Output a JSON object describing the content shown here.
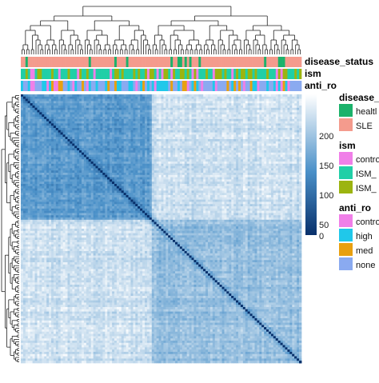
{
  "chart_data": {
    "type": "heatmap",
    "title": "",
    "matrix_size": 120,
    "cluster_split": 56,
    "scale_range": [
      0,
      220
    ],
    "colorbar_ticks": [
      200,
      150,
      100,
      50,
      0
    ],
    "colorbar_colors": {
      "low": "#08306b",
      "mid": "#4a90c8",
      "high": "#ffffff"
    },
    "diagonal_value": 0,
    "block_means": {
      "upper_left": 110,
      "lower_right": 150,
      "off_diagonal": 185
    },
    "annotation_tracks": [
      {
        "name": "disease_status",
        "categories": [
          {
            "label": "healthy",
            "color": "#1bb26b"
          },
          {
            "label": "SLE",
            "color": "#f49b8d"
          }
        ]
      },
      {
        "name": "ism",
        "categories": [
          {
            "label": "control",
            "color": "#f07fe8"
          },
          {
            "label": "ISM_high",
            "color": "#21cfa7"
          },
          {
            "label": "ISM_low",
            "color": "#9cb410"
          }
        ]
      },
      {
        "name": "anti_ro",
        "categories": [
          {
            "label": "control",
            "color": "#f07fe8"
          },
          {
            "label": "high",
            "color": "#20c8ea"
          },
          {
            "label": "med",
            "color": "#e8a010"
          },
          {
            "label": "none",
            "color": "#8aaaf0"
          }
        ]
      }
    ],
    "legend": [
      {
        "title": "disease_",
        "items": [
          "healthy",
          "SLE"
        ]
      },
      {
        "title": "ism",
        "items": [
          "control",
          "ISM_",
          "ISM_"
        ]
      },
      {
        "title": "anti_ro",
        "items": [
          "contro",
          "high",
          "med",
          "none"
        ]
      }
    ]
  },
  "colors": {
    "healthy": "#1bb26b",
    "sle": "#f49b8d",
    "control": "#f07fe8",
    "ism_high": "#21cfa7",
    "ism_low": "#9cb410",
    "high": "#20c8ea",
    "med": "#e8a010",
    "none": "#8aaaf0"
  },
  "labels": {
    "track_disease": "disease_status",
    "track_ism": "ism",
    "track_anti_ro": "anti_ro",
    "legend_disease_title": "disease_",
    "legend_disease_1": "healtl",
    "legend_disease_2": "SLE",
    "legend_ism_title": "ism",
    "legend_ism_1": "contro",
    "legend_ism_2": "ISM_",
    "legend_ism_3": "ISM_",
    "legend_anti_title": "anti_ro",
    "legend_anti_1": "contro",
    "legend_anti_2": "high",
    "legend_anti_3": "med",
    "legend_anti_4": "none",
    "tick_200": "200",
    "tick_150": "150",
    "tick_100": "100",
    "tick_50": "50",
    "tick_0": "0"
  }
}
